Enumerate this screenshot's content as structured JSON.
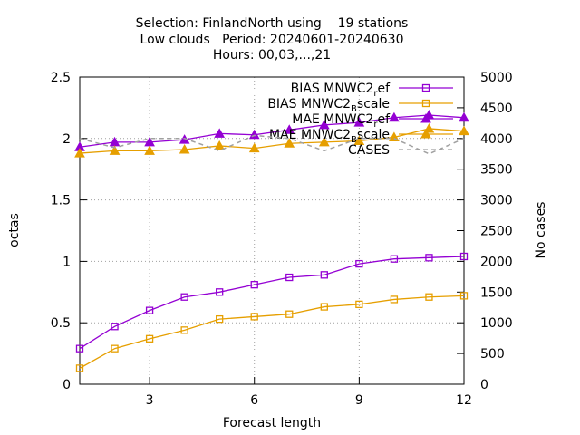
{
  "chart_data": {
    "type": "line",
    "title": [
      "Selection: FinlandNorth using    19 stations",
      "Low clouds   Period: 20240601-20240630",
      "Hours: 00,03,...,21"
    ],
    "xlabel": "Forecast length",
    "ylabel": "octas",
    "y2label": "No cases",
    "x": [
      1,
      2,
      3,
      4,
      5,
      6,
      7,
      8,
      9,
      10,
      11,
      12
    ],
    "xlim": [
      1,
      12
    ],
    "xticks": [
      3,
      6,
      9,
      12
    ],
    "ylim": [
      0,
      2.5
    ],
    "yticks": [
      0,
      0.5,
      1,
      1.5,
      2,
      2.5
    ],
    "y2lim": [
      0,
      5000
    ],
    "y2ticks": [
      0,
      500,
      1000,
      1500,
      2000,
      2500,
      3000,
      3500,
      4000,
      4500,
      5000
    ],
    "grid": true,
    "legend": "top-right",
    "series": [
      {
        "name": "BIAS MNWC2_ref",
        "color": "#9400d3",
        "marker": "square",
        "values": [
          0.29,
          0.47,
          0.6,
          0.71,
          0.75,
          0.81,
          0.87,
          0.89,
          0.98,
          1.02,
          1.03,
          1.04
        ]
      },
      {
        "name": "BIAS MNWC2_Bscale",
        "color": "#e69f00",
        "marker": "square",
        "values": [
          0.13,
          0.29,
          0.37,
          0.44,
          0.53,
          0.55,
          0.57,
          0.63,
          0.65,
          0.69,
          0.71,
          0.72
        ]
      },
      {
        "name": "MAE MNWC2_ref",
        "color": "#9400d3",
        "marker": "triangle",
        "values": [
          1.93,
          1.97,
          1.97,
          1.99,
          2.04,
          2.03,
          2.07,
          2.11,
          2.13,
          2.17,
          2.19,
          2.17
        ]
      },
      {
        "name": "MAE MNWC2_Bscale",
        "color": "#e69f00",
        "marker": "triangle",
        "values": [
          1.88,
          1.9,
          1.9,
          1.91,
          1.94,
          1.92,
          1.96,
          1.97,
          1.98,
          2.01,
          2.08,
          2.06
        ]
      },
      {
        "name": "CASES",
        "color": "#a0a0a0",
        "marker": "none",
        "dash": true,
        "axis": "y2",
        "values": [
          4000,
          3850,
          4000,
          4000,
          3800,
          4050,
          4000,
          3800,
          4000,
          4000,
          3750,
          4000
        ]
      }
    ]
  }
}
